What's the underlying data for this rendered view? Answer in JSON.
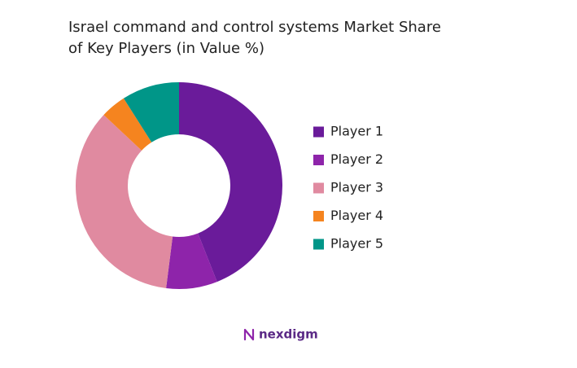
{
  "chart_data": {
    "type": "pie",
    "donut": true,
    "title": [
      "Israel command and control systems Market Share",
      "of Key Players (in Value %)"
    ],
    "categories": [
      "Player 1",
      "Player 2",
      "Player 3",
      "Player 4",
      "Player 5"
    ],
    "values": [
      44,
      8,
      35,
      4,
      9
    ],
    "colors": [
      "#6a1b9a",
      "#8e24aa",
      "#e08aa0",
      "#f5841f",
      "#009688"
    ]
  },
  "footer": {
    "brand": "nexdigm"
  }
}
